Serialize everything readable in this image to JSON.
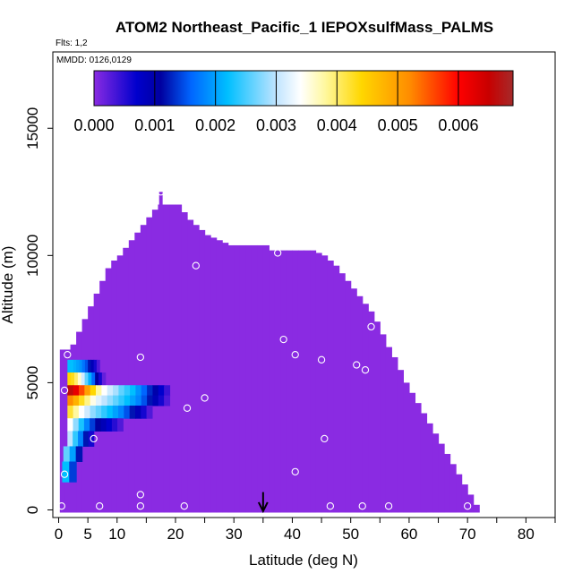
{
  "chart_data": {
    "type": "heatmap",
    "title": "ATOM2 Northeast_Pacific_1 IEPOXsulfMass_PALMS",
    "subtitle_flights": "Flts: 1,2",
    "subtitle_dates": "MMDD: 0126,0129",
    "xlabel": "Latitude (deg N)",
    "ylabel": "Altitude (m)",
    "xlim": [
      -1,
      85
    ],
    "ylim": [
      -300,
      18000
    ],
    "x_tick_labels": [
      "0",
      "5",
      "10",
      "20",
      "30",
      "40",
      "50",
      "60",
      "70",
      "80"
    ],
    "x_ticks_all": [
      0,
      5,
      10,
      15,
      20,
      25,
      30,
      35,
      40,
      45,
      50,
      55,
      60,
      65,
      70,
      75,
      80,
      85
    ],
    "y_ticks": [
      0,
      5000,
      10000,
      15000
    ],
    "y_tick_labels": [
      "0",
      "5000",
      "10000",
      "15000"
    ],
    "colorbar": {
      "min": 0,
      "max": 0.0069,
      "tick_values": [
        0,
        0.001,
        0.002,
        0.003,
        0.004,
        0.005,
        0.006
      ],
      "tick_labels": [
        "0.000",
        "0.001",
        "0.002",
        "0.003",
        "0.004",
        "0.005",
        "0.006"
      ],
      "stops": [
        {
          "v": 0.0,
          "color": "#8a2be2"
        },
        {
          "v": 0.0007,
          "color": "#0000cd"
        },
        {
          "v": 0.0011,
          "color": "#0000a0"
        },
        {
          "v": 0.0016,
          "color": "#0066ff"
        },
        {
          "v": 0.0022,
          "color": "#00bfff"
        },
        {
          "v": 0.003,
          "color": "#c0e4ff"
        },
        {
          "v": 0.0034,
          "color": "#ffffff"
        },
        {
          "v": 0.0038,
          "color": "#fff8a0"
        },
        {
          "v": 0.0044,
          "color": "#ffd700"
        },
        {
          "v": 0.0052,
          "color": "#ff8c00"
        },
        {
          "v": 0.006,
          "color": "#ff0000"
        },
        {
          "v": 0.0065,
          "color": "#c80000"
        },
        {
          "v": 0.0069,
          "color": "#a52a2a"
        }
      ]
    },
    "background_value": 0.0,
    "envelope": [
      [
        0.2,
        6300
      ],
      [
        1,
        6300
      ],
      [
        2,
        6500
      ],
      [
        3,
        7000
      ],
      [
        4,
        7500
      ],
      [
        5,
        8000
      ],
      [
        6,
        8500
      ],
      [
        7,
        9000
      ],
      [
        8,
        9500
      ],
      [
        9,
        9800
      ],
      [
        10,
        10000
      ],
      [
        11,
        10300
      ],
      [
        12,
        10600
      ],
      [
        13,
        10900
      ],
      [
        14,
        11200
      ],
      [
        15,
        11500
      ],
      [
        16,
        11800
      ],
      [
        17,
        12000
      ],
      [
        18,
        12000
      ],
      [
        19,
        12000
      ],
      [
        20,
        12000
      ],
      [
        21,
        11700
      ],
      [
        22,
        11400
      ],
      [
        23,
        11200
      ],
      [
        24,
        11000
      ],
      [
        25,
        10800
      ],
      [
        26,
        10700
      ],
      [
        27,
        10600
      ],
      [
        28,
        10500
      ],
      [
        29,
        10400
      ],
      [
        30,
        10400
      ],
      [
        31,
        10400
      ],
      [
        32,
        10400
      ],
      [
        33,
        10400
      ],
      [
        34,
        10400
      ],
      [
        35,
        10400
      ],
      [
        36,
        10200
      ],
      [
        37,
        10200
      ],
      [
        38,
        10200
      ],
      [
        39,
        10200
      ],
      [
        40,
        10200
      ],
      [
        41,
        10200
      ],
      [
        42,
        10200
      ],
      [
        43,
        10200
      ],
      [
        44,
        10100
      ],
      [
        45,
        10000
      ],
      [
        46,
        9800
      ],
      [
        47,
        9600
      ],
      [
        48,
        9300
      ],
      [
        49,
        9000
      ],
      [
        50,
        8700
      ],
      [
        51,
        8400
      ],
      [
        52,
        8100
      ],
      [
        53,
        7800
      ],
      [
        54,
        7400
      ],
      [
        55,
        6900
      ],
      [
        56,
        6400
      ],
      [
        57,
        6000
      ],
      [
        58,
        5500
      ],
      [
        59,
        5000
      ],
      [
        60,
        4600
      ],
      [
        61,
        4200
      ],
      [
        62,
        3800
      ],
      [
        63,
        3400
      ],
      [
        64,
        3000
      ],
      [
        65,
        2600
      ],
      [
        66,
        2200
      ],
      [
        67,
        1800
      ],
      [
        68,
        1400
      ],
      [
        69,
        1000
      ],
      [
        70,
        600
      ],
      [
        71,
        200
      ]
    ],
    "envelope_spike": {
      "lat": 17.5,
      "alt_top": 12500
    },
    "anomaly_bins": [
      {
        "lat0": 1.5,
        "lat1": 7,
        "alt0": 5400,
        "alt1": 5900,
        "values": [
          0.0022,
          0.0022,
          0.0021,
          0.002,
          0.0019,
          0.0017,
          0.0015,
          0.0012,
          0.0009,
          0.0006,
          0.0003
        ]
      },
      {
        "lat0": 1.5,
        "lat1": 8,
        "alt0": 4900,
        "alt1": 5400,
        "values": [
          0.0044,
          0.0043,
          0.004,
          0.0036,
          0.0031,
          0.0026,
          0.0021,
          0.0016,
          0.0011,
          0.0006,
          0.0002
        ]
      },
      {
        "lat0": 1.5,
        "lat1": 19,
        "alt0": 4500,
        "alt1": 4900,
        "values": [
          0.0066,
          0.0062,
          0.0056,
          0.005,
          0.0044,
          0.0038,
          0.0034,
          0.0031,
          0.0029,
          0.0026,
          0.0024,
          0.0022,
          0.0019,
          0.0016,
          0.0013,
          0.001,
          0.0007,
          0.0004
        ]
      },
      {
        "lat0": 1.5,
        "lat1": 19,
        "alt0": 4100,
        "alt1": 4500,
        "values": [
          0.0052,
          0.0048,
          0.0043,
          0.0039,
          0.0035,
          0.0032,
          0.003,
          0.0028,
          0.0026,
          0.0024,
          0.0022,
          0.002,
          0.0018,
          0.0015,
          0.0012,
          0.0009,
          0.0006,
          0.0003
        ]
      },
      {
        "lat0": 1.5,
        "lat1": 16,
        "alt0": 3600,
        "alt1": 4100,
        "values": [
          0.0042,
          0.0038,
          0.0034,
          0.0031,
          0.0028,
          0.0026,
          0.0024,
          0.0022,
          0.002,
          0.0018,
          0.0015,
          0.0012,
          0.0009,
          0.0006,
          0.0003
        ]
      },
      {
        "lat0": 1.5,
        "lat1": 11,
        "alt0": 3100,
        "alt1": 3600,
        "values": [
          0.0034,
          0.0028,
          0.0023,
          0.0018,
          0.0014,
          0.0011,
          0.0009,
          0.0007,
          0.0005,
          0.0003
        ]
      },
      {
        "lat0": 1.5,
        "lat1": 6,
        "alt0": 2500,
        "alt1": 3100,
        "values": [
          0.003,
          0.0024,
          0.0018,
          0.0012,
          0.0006
        ]
      },
      {
        "lat0": 0.8,
        "lat1": 4,
        "alt0": 1900,
        "alt1": 2500,
        "values": [
          0.0026,
          0.002,
          0.0012
        ]
      },
      {
        "lat0": 0.6,
        "lat1": 3,
        "alt0": 1100,
        "alt1": 1900,
        "values": [
          0.0022,
          0.0014
        ]
      }
    ],
    "sample_points": [
      [
        0.5,
        150
      ],
      [
        7,
        150
      ],
      [
        14,
        150
      ],
      [
        21.5,
        150
      ],
      [
        46.5,
        150
      ],
      [
        52,
        150
      ],
      [
        56.5,
        150
      ],
      [
        70,
        150
      ],
      [
        14,
        600
      ],
      [
        1,
        1400
      ],
      [
        40.5,
        1500
      ],
      [
        6,
        2800
      ],
      [
        45.5,
        2800
      ],
      [
        22,
        4000
      ],
      [
        25,
        4400
      ],
      [
        1,
        4700
      ],
      [
        52.5,
        5500
      ],
      [
        51,
        5700
      ],
      [
        45,
        5900
      ],
      [
        14,
        6000
      ],
      [
        1.5,
        6100
      ],
      [
        40.5,
        6100
      ],
      [
        38.5,
        6700
      ],
      [
        53.5,
        7200
      ],
      [
        52.5,
        9100
      ],
      [
        23.5,
        9600
      ],
      [
        37.5,
        10100
      ],
      [
        43,
        10400
      ],
      [
        17.5,
        12500
      ]
    ],
    "marker_arrow": {
      "lat": 35,
      "alt_top": 700,
      "alt_bottom": -50
    }
  }
}
